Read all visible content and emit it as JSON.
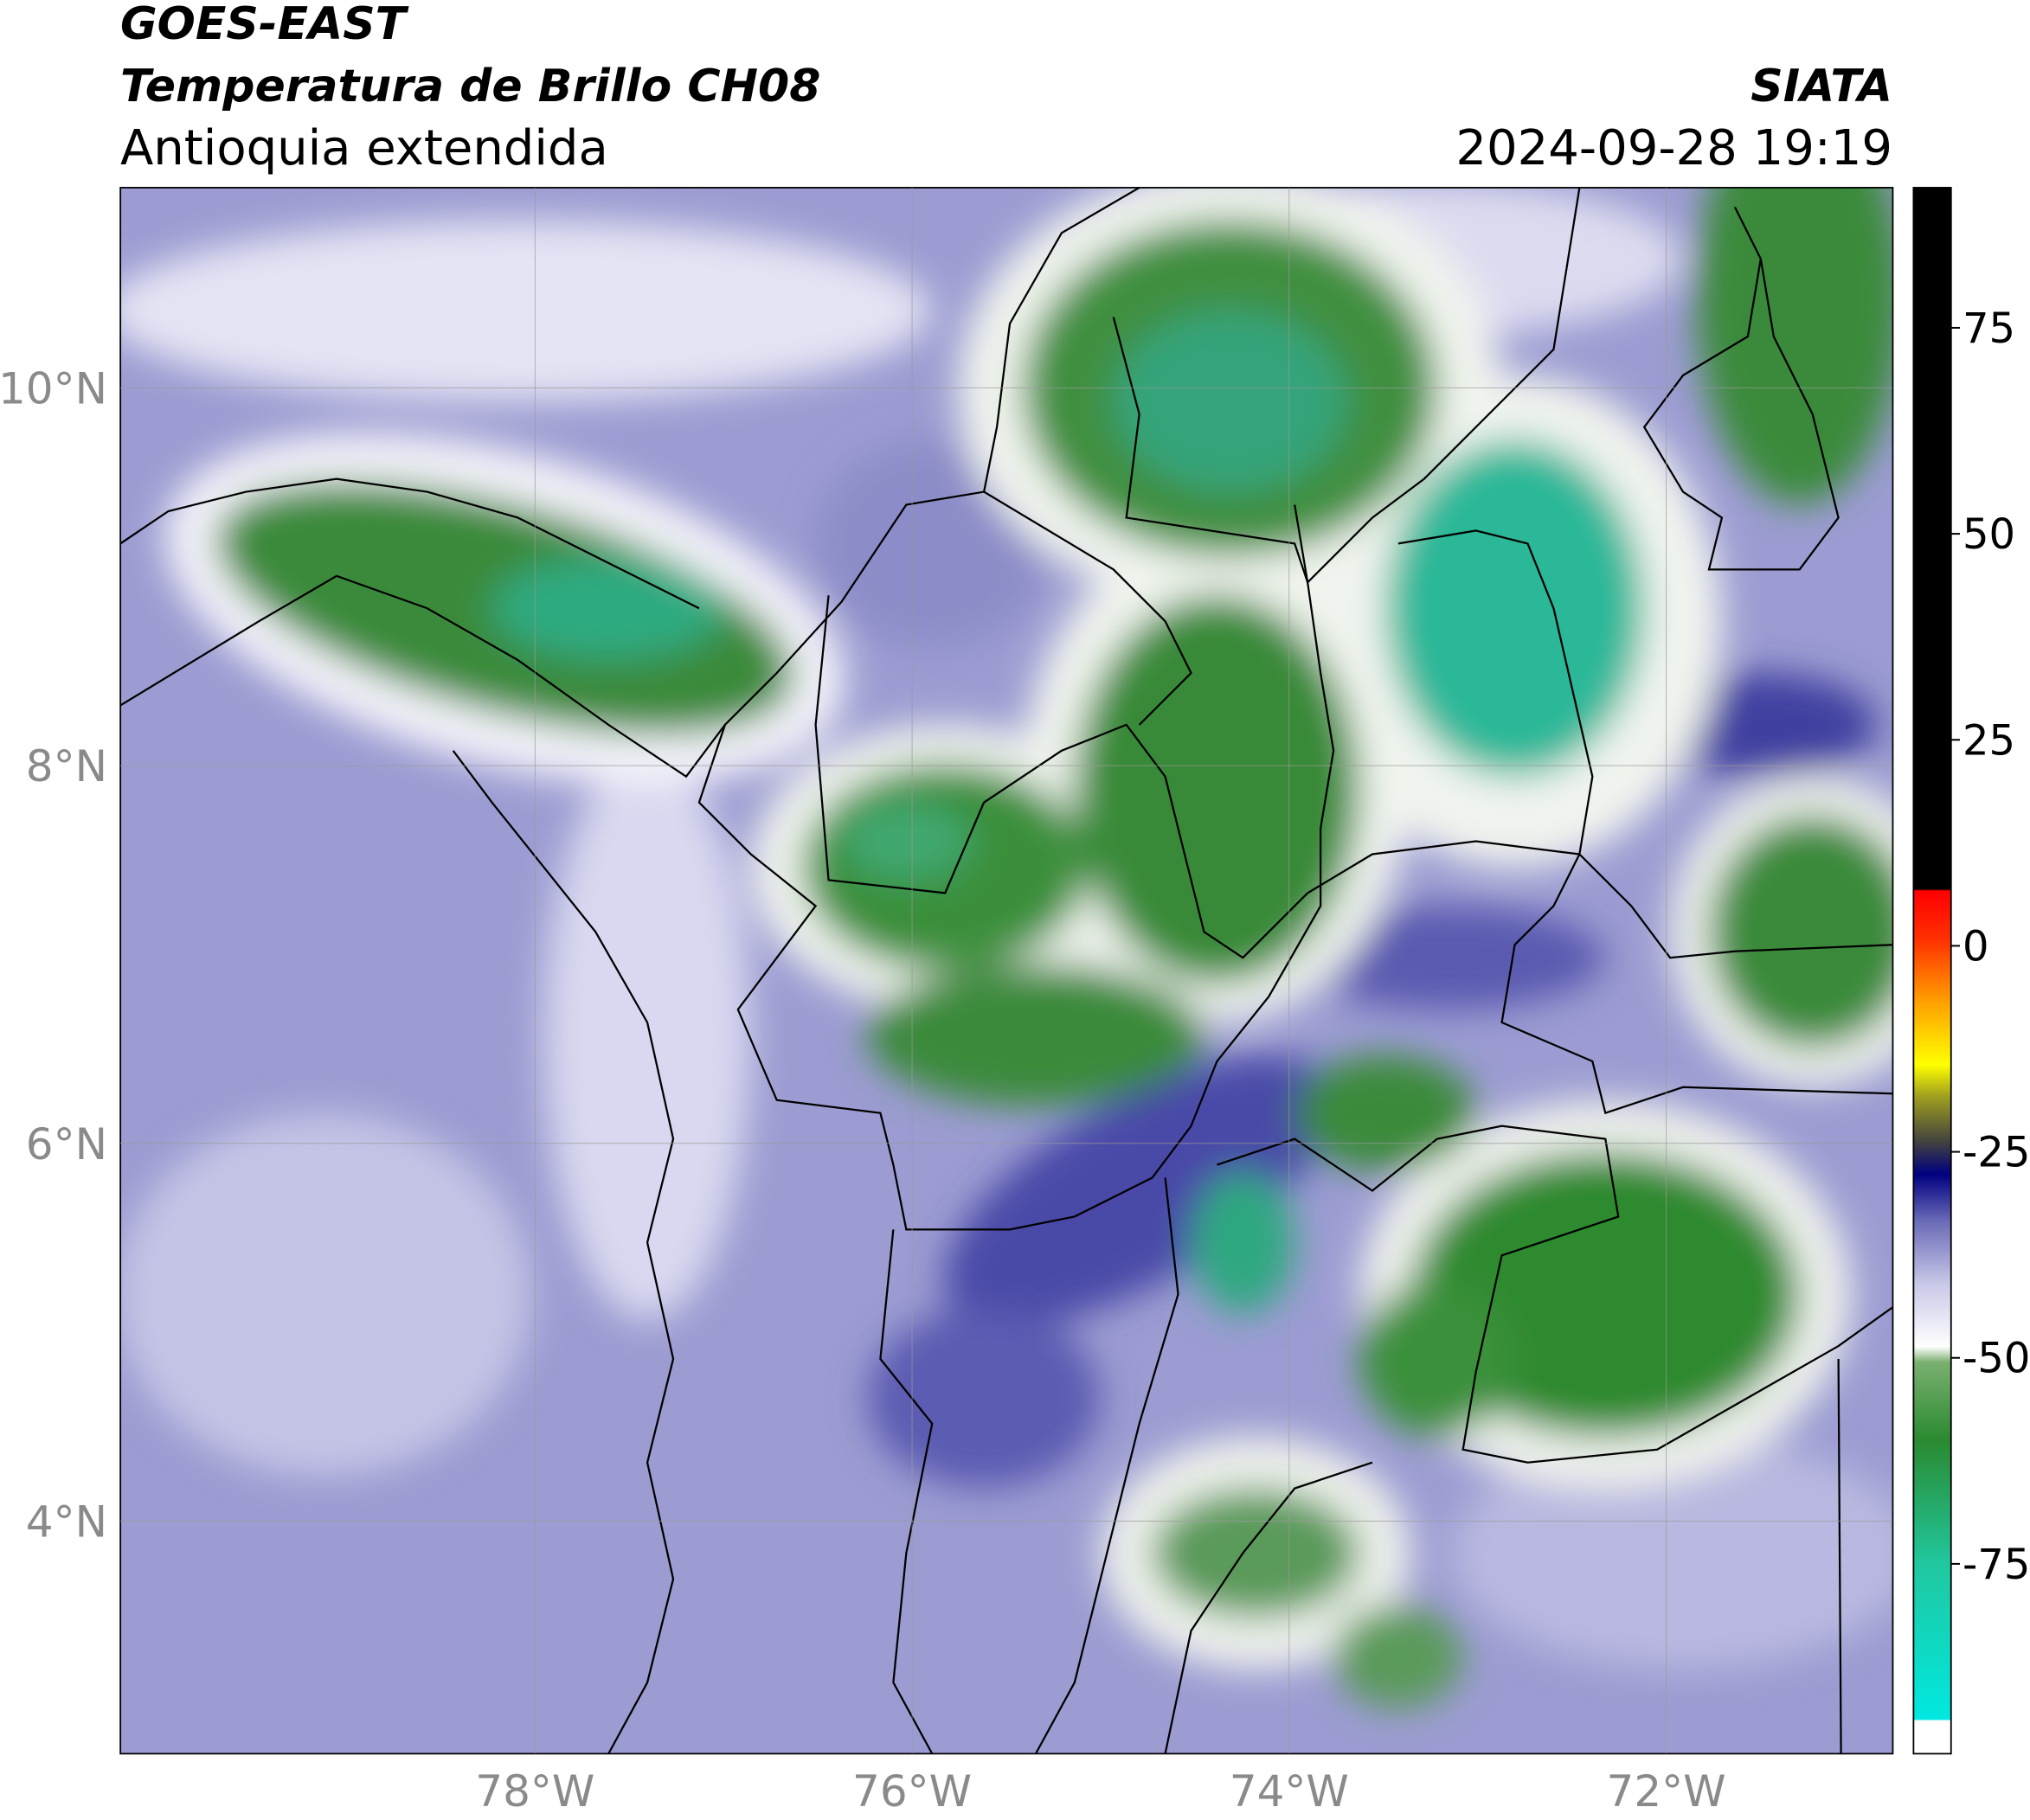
{
  "header": {
    "title": "GOES-EAST",
    "subtitle": "Temperatura de Brillo CH08",
    "region": "Antioquia extendida",
    "agency": "SIATA",
    "datetime": "2024-09-28 19:19"
  },
  "map": {
    "xlim": [
      -80.2,
      -70.8
    ],
    "ylim": [
      2.77,
      11.06
    ],
    "xticks": [
      {
        "value": -78,
        "label": "78°W"
      },
      {
        "value": -76,
        "label": "76°W"
      },
      {
        "value": -74,
        "label": "74°W"
      },
      {
        "value": -72,
        "label": "72°W"
      }
    ],
    "yticks": [
      {
        "value": 10,
        "label": "10°N"
      },
      {
        "value": 8,
        "label": "8°N"
      },
      {
        "value": 6,
        "label": "6°N"
      },
      {
        "value": 4,
        "label": "4°N"
      }
    ],
    "grid": true
  },
  "colorbar": {
    "clim": [
      -98,
      92
    ],
    "ticks": [
      75,
      50,
      25,
      0,
      -25,
      -50,
      -75
    ]
  }
}
